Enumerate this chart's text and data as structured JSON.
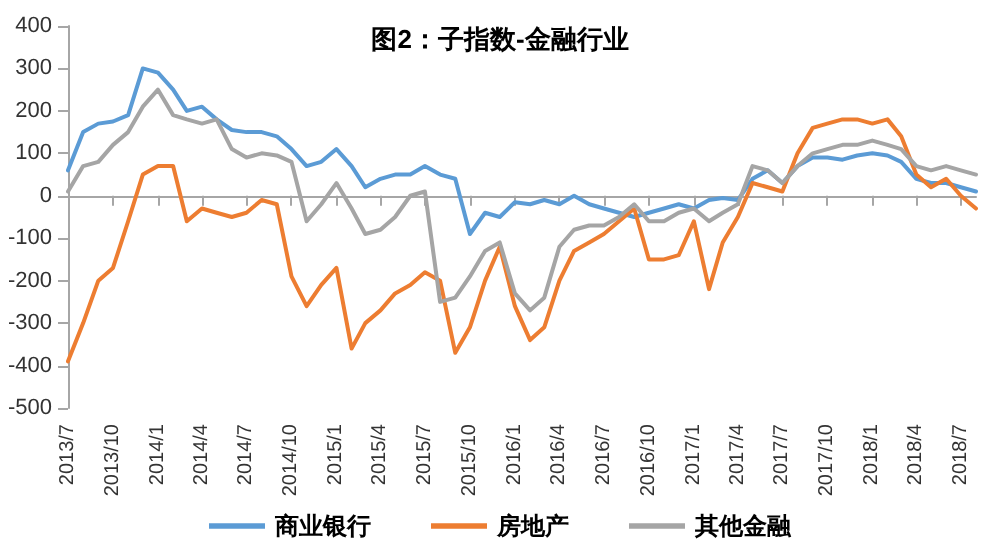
{
  "chart_data": {
    "type": "line",
    "title": "图2：子指数-金融行业",
    "x": [
      "2013-07",
      "2013-08",
      "2013-09",
      "2013-10",
      "2013-11",
      "2013-12",
      "2014-01",
      "2014-02",
      "2014-03",
      "2014-04",
      "2014-05",
      "2014-06",
      "2014-07",
      "2014-08",
      "2014-09",
      "2014-10",
      "2014-11",
      "2014-12",
      "2015-01",
      "2015-02",
      "2015-03",
      "2015-04",
      "2015-05",
      "2015-06",
      "2015-07",
      "2015-08",
      "2015-09",
      "2015-10",
      "2015-11",
      "2015-12",
      "2016-01",
      "2016-02",
      "2016-03",
      "2016-04",
      "2016-05",
      "2016-06",
      "2016-07",
      "2016-08",
      "2016-09",
      "2016-10",
      "2016-11",
      "2016-12",
      "2017-01",
      "2017-02",
      "2017-03",
      "2017-04",
      "2017-05",
      "2017-06",
      "2017-07",
      "2017-08",
      "2017-09",
      "2017-10",
      "2017-11",
      "2017-12",
      "2018-01",
      "2018-02",
      "2018-03",
      "2018-04",
      "2018-05",
      "2018-06",
      "2018-07",
      "2018-08"
    ],
    "series": [
      {
        "name": "商业银行",
        "color": "#5b9bd5",
        "values": [
          60,
          150,
          170,
          175,
          190,
          300,
          290,
          250,
          200,
          210,
          180,
          155,
          150,
          150,
          140,
          110,
          70,
          80,
          110,
          70,
          20,
          40,
          50,
          50,
          70,
          50,
          40,
          -90,
          -40,
          -50,
          -15,
          -20,
          -10,
          -20,
          0,
          -20,
          -30,
          -40,
          -50,
          -40,
          -30,
          -20,
          -30,
          -10,
          -5,
          -10,
          40,
          60,
          30,
          70,
          90,
          90,
          85,
          95,
          100,
          95,
          80,
          40,
          30,
          30,
          20,
          10
        ]
      },
      {
        "name": "房地产",
        "color": "#ed7d31",
        "values": [
          -390,
          -300,
          -200,
          -170,
          -60,
          50,
          70,
          70,
          -60,
          -30,
          -40,
          -50,
          -40,
          -10,
          -20,
          -190,
          -260,
          -210,
          -170,
          -360,
          -300,
          -270,
          -230,
          -210,
          -180,
          -200,
          -370,
          -310,
          -200,
          -120,
          -260,
          -340,
          -310,
          -200,
          -130,
          -110,
          -90,
          -60,
          -30,
          -150,
          -150,
          -140,
          -60,
          -220,
          -110,
          -50,
          30,
          20,
          10,
          100,
          160,
          170,
          180,
          180,
          170,
          180,
          140,
          50,
          20,
          40,
          0,
          -30
        ]
      },
      {
        "name": "其他金融",
        "color": "#a5a5a5",
        "values": [
          10,
          70,
          80,
          120,
          150,
          210,
          250,
          190,
          180,
          170,
          180,
          110,
          90,
          100,
          95,
          80,
          -60,
          -20,
          30,
          -30,
          -90,
          -80,
          -50,
          0,
          10,
          -250,
          -240,
          -190,
          -130,
          -110,
          -230,
          -270,
          -240,
          -120,
          -80,
          -70,
          -70,
          -50,
          -20,
          -60,
          -60,
          -40,
          -30,
          -60,
          -40,
          -20,
          70,
          60,
          30,
          70,
          100,
          110,
          120,
          120,
          130,
          120,
          110,
          70,
          60,
          70,
          60,
          50
        ]
      }
    ],
    "xlim": [
      "2013-07",
      "2018-08"
    ],
    "xticks": [
      {
        "value": "2013-07",
        "label": "2013/7"
      },
      {
        "value": "2013-10",
        "label": "2013/10"
      },
      {
        "value": "2014-01",
        "label": "2014/1"
      },
      {
        "value": "2014-04",
        "label": "2014/4"
      },
      {
        "value": "2014-07",
        "label": "2014/7"
      },
      {
        "value": "2014-10",
        "label": "2014/10"
      },
      {
        "value": "2015-01",
        "label": "2015/1"
      },
      {
        "value": "2015-04",
        "label": "2015/4"
      },
      {
        "value": "2015-07",
        "label": "2015/7"
      },
      {
        "value": "2015-10",
        "label": "2015/10"
      },
      {
        "value": "2016-01",
        "label": "2016/1"
      },
      {
        "value": "2016-04",
        "label": "2016/4"
      },
      {
        "value": "2016-07",
        "label": "2016/7"
      },
      {
        "value": "2016-10",
        "label": "2016/10"
      },
      {
        "value": "2017-01",
        "label": "2017/1"
      },
      {
        "value": "2017-04",
        "label": "2017/4"
      },
      {
        "value": "2017-07",
        "label": "2017/7"
      },
      {
        "value": "2017-10",
        "label": "2017/10"
      },
      {
        "value": "2018-01",
        "label": "2018/1"
      },
      {
        "value": "2018-04",
        "label": "2018/4"
      },
      {
        "value": "2018-07",
        "label": "2018/7"
      }
    ],
    "ylim": [
      -500,
      400
    ],
    "yticks": [
      -500,
      -400,
      -300,
      -200,
      -100,
      0,
      100,
      200,
      300,
      400
    ],
    "legend": "bottom",
    "marker": "none",
    "line_style": "solid"
  }
}
